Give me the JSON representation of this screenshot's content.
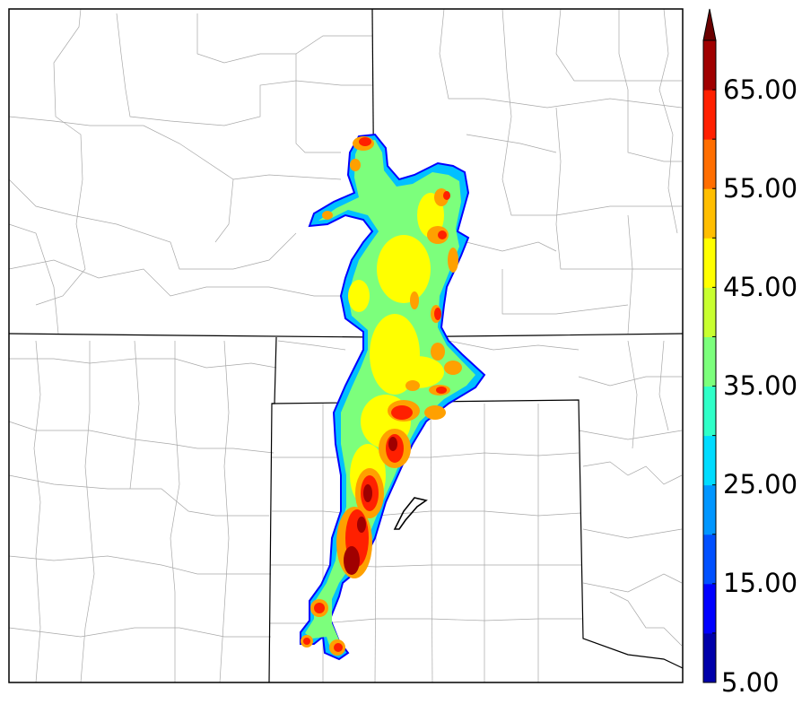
{
  "colorbar": {
    "min_label": "5.00",
    "tick_labels": [
      "15.00",
      "25.00",
      "35.00",
      "45.00",
      "55.00",
      "65.00"
    ],
    "levels": [
      5,
      10,
      15,
      20,
      25,
      30,
      35,
      40,
      45,
      50,
      55,
      60,
      65,
      70
    ],
    "colors": [
      "#0000aa",
      "#0000ff",
      "#0050ff",
      "#0096ff",
      "#00dcff",
      "#30ffc8",
      "#7cff7c",
      "#c8ff30",
      "#ffff00",
      "#ffbe00",
      "#ff6e00",
      "#ff2000",
      "#a00000"
    ],
    "extend": "max",
    "extend_color": "#6b0000"
  },
  "map": {
    "background": "#ffffff",
    "state_border_color": "#000000",
    "county_border_color": "#9a9a9a"
  }
}
